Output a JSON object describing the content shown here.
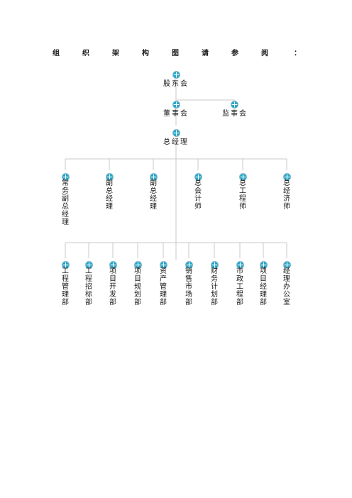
{
  "heading": {
    "chars": [
      "组",
      "织",
      "架",
      "构",
      "图",
      "请",
      "参",
      "阅",
      "："
    ]
  },
  "nodes": {
    "shareholders": "股东会",
    "board": "董事会",
    "supervisors": "监事会",
    "general_manager": "总经理"
  },
  "executives": [
    "常务副总经理",
    "副总经理",
    "副总经理",
    "总会计师",
    "总工程师",
    "总经济师"
  ],
  "departments": [
    "工程管理部",
    "工程招标部",
    "项目开发部",
    "项目规划部",
    "资产管理部",
    "销售市场部",
    "财务计划部",
    "市政工程部",
    "项目经理部",
    "经理办公室"
  ],
  "colors": {
    "line": "#c8c8c8",
    "icon_fill": "#21a6c9",
    "icon_ring": "#8ab7c6"
  }
}
